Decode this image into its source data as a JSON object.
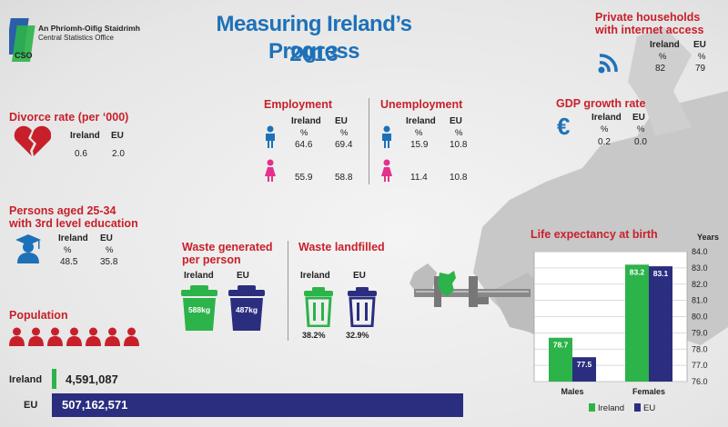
{
  "title": "Measuring Ireland’s Progress",
  "year": "2013",
  "logo": {
    "line1": "An Phríomh-Oifig Staidrimh",
    "line2": "Central Statistics Office",
    "mark": "CSO"
  },
  "colors": {
    "ireland": "#2cb34a",
    "eu": "#2b2e7f",
    "accent_red": "#c8202a",
    "title_blue": "#1d71b8"
  },
  "internet": {
    "title_line1": "Private households",
    "title_line2": "with internet access",
    "col1": "Ireland",
    "col2": "EU",
    "unit": "%",
    "ireland": "82",
    "eu": "79",
    "icon": "wifi-icon"
  },
  "gdp": {
    "title": "GDP growth rate",
    "col1": "Ireland",
    "col2": "EU",
    "unit": "%",
    "ireland": "0.2",
    "eu": "0.0",
    "icon": "euro-icon"
  },
  "divorce": {
    "title": "Divorce rate (per ‘000)",
    "col1": "Ireland",
    "col2": "EU",
    "ireland": "0.6",
    "eu": "2.0",
    "icon": "broken-heart-icon"
  },
  "employment": {
    "title": "Employment",
    "col1": "Ireland",
    "col2": "EU",
    "unit": "%",
    "male_ireland": "64.6",
    "male_eu": "69.4",
    "female_ireland": "55.9",
    "female_eu": "58.8"
  },
  "unemployment": {
    "title": "Unemployment",
    "col1": "Ireland",
    "col2": "EU",
    "unit": "%",
    "male_ireland": "15.9",
    "male_eu": "10.8",
    "female_ireland": "11.4",
    "female_eu": "10.8"
  },
  "education": {
    "title_line1": "Persons aged 25-34",
    "title_line2": "with 3rd level education",
    "col1": "Ireland",
    "col2": "EU",
    "unit": "%",
    "ireland": "48.5",
    "eu": "35.8",
    "icon": "graduate-icon"
  },
  "waste_generated": {
    "title_line1": "Waste generated",
    "title_line2": "per person",
    "col1": "Ireland",
    "col2": "EU",
    "ireland": "588kg",
    "eu": "487kg",
    "icon": "bin-icon"
  },
  "waste_landfilled": {
    "title": "Waste landfilled",
    "col1": "Ireland",
    "col2": "EU",
    "ireland": "38.2%",
    "eu": "32.9%",
    "icon": "bin-icon"
  },
  "population": {
    "title": "Population",
    "ireland_label": "Ireland",
    "eu_label": "EU",
    "ireland": "4,591,087",
    "eu": "507,162,571",
    "icon": "people-icon"
  },
  "chart_data": {
    "type": "bar",
    "title": "Life expectancy at birth",
    "ylabel": "Years",
    "categories": [
      "Males",
      "Females"
    ],
    "series": [
      {
        "name": "Ireland",
        "values": [
          78.7,
          83.2
        ],
        "color": "#2cb34a"
      },
      {
        "name": "EU",
        "values": [
          77.5,
          83.1
        ],
        "color": "#2b2e7f"
      }
    ],
    "ylim": [
      76.0,
      84.0
    ],
    "yticks": [
      "76.0",
      "77.0",
      "78.0",
      "79.0",
      "80.0",
      "81.0",
      "82.0",
      "83.0",
      "84.0"
    ],
    "value_labels": [
      [
        "78.7",
        "83.2"
      ],
      [
        "77.5",
        "83.1"
      ]
    ],
    "grid": true,
    "legend": "bottom"
  }
}
